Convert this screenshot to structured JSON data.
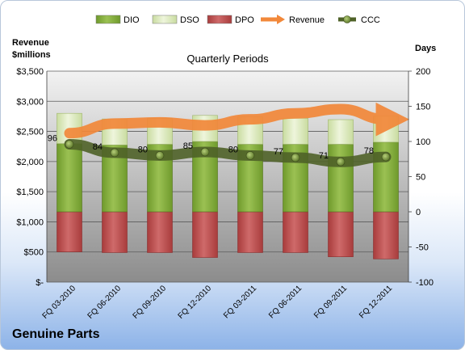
{
  "company": "Genuine Parts",
  "chart_data": {
    "type": "bar",
    "title": "Quarterly Periods",
    "y_left_label": [
      "Revenue",
      "$millions"
    ],
    "y_right_label": "Days",
    "y_left_ticks": [
      "$-",
      "$500",
      "$1,000",
      "$1,500",
      "$2,000",
      "$2,500",
      "$3,000",
      "$3,500"
    ],
    "y_left_range": [
      0,
      3500
    ],
    "y_right_ticks": [
      "-100",
      "-50",
      "0",
      "50",
      "100",
      "150",
      "200"
    ],
    "y_right_range": [
      -100,
      200
    ],
    "grid": true,
    "legend_position": "top",
    "categories": [
      "FQ 03-2010",
      "FQ 06-2010",
      "FQ 09-2010",
      "FQ 12-2010",
      "FQ 03-2011",
      "FQ 06-2011",
      "FQ 09-2011",
      "FQ 12-2011"
    ],
    "series": [
      {
        "name": "DIO",
        "axis": "days",
        "values": [
          97,
          95,
          96,
          100,
          96,
          96,
          96,
          99
        ],
        "color": "#7aa33a"
      },
      {
        "name": "DSO",
        "axis": "days",
        "values": [
          43,
          37,
          37,
          37,
          39,
          37,
          35,
          37
        ],
        "color": "#dce8b8"
      },
      {
        "name": "DPO",
        "axis": "days",
        "values": [
          -57,
          -58,
          -58,
          -65,
          -58,
          -58,
          -64,
          -67
        ],
        "color": "#b94a4a"
      },
      {
        "name": "Revenue",
        "axis": "revenue",
        "values": [
          2470,
          2630,
          2650,
          2600,
          2700,
          2800,
          2870,
          2700
        ],
        "color": "#f2883a"
      },
      {
        "name": "CCC",
        "axis": "days",
        "values": [
          96,
          84,
          80,
          85,
          80,
          77,
          71,
          78
        ],
        "color": "#4f6228"
      }
    ]
  }
}
